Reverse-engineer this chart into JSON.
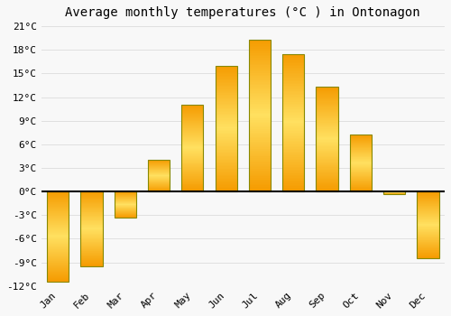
{
  "months": [
    "Jan",
    "Feb",
    "Mar",
    "Apr",
    "May",
    "Jun",
    "Jul",
    "Aug",
    "Sep",
    "Oct",
    "Nov",
    "Dec"
  ],
  "values": [
    -11.5,
    -9.5,
    -3.3,
    4.0,
    11.0,
    16.0,
    19.3,
    17.5,
    13.3,
    7.2,
    -0.3,
    -8.5
  ],
  "bar_color": "#FFA500",
  "bar_edge_color": "#888800",
  "title": "Average monthly temperatures (°C ) in Ontonagon",
  "ylim": [
    -12,
    21
  ],
  "yticks": [
    -12,
    -9,
    -6,
    -3,
    0,
    3,
    6,
    9,
    12,
    15,
    18,
    21
  ],
  "background_color": "#f8f8f8",
  "grid_color": "#e0e0e0",
  "title_fontsize": 10,
  "tick_fontsize": 8,
  "bar_width": 0.65
}
